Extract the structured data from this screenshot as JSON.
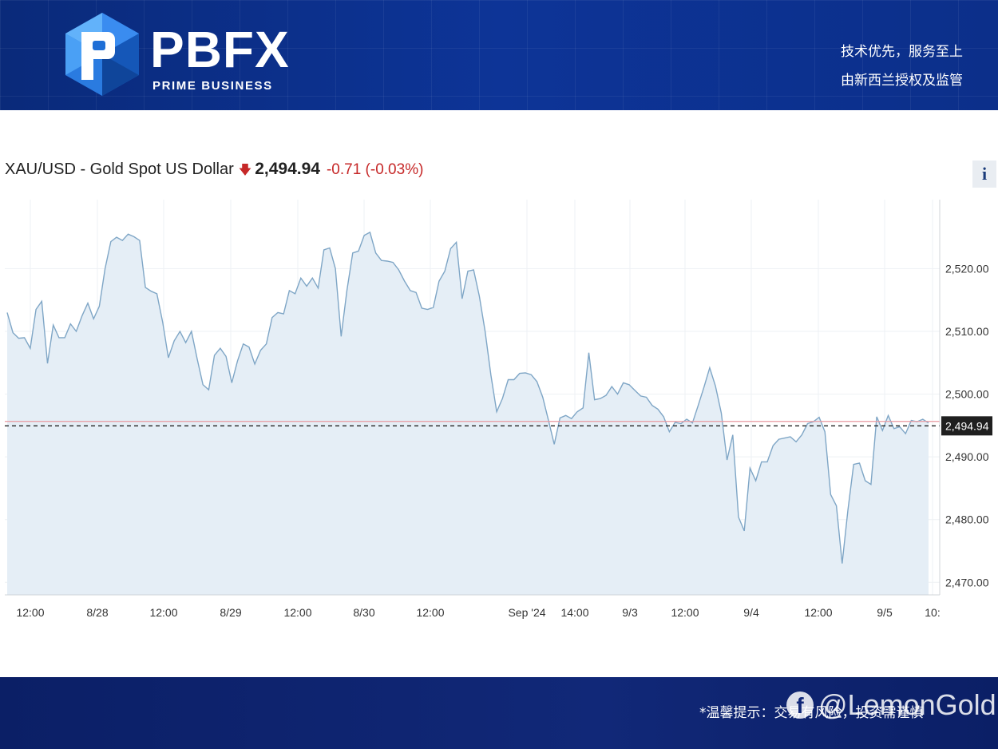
{
  "brand": {
    "name": "PBFX",
    "subtitle": "PRIME BUSINESS",
    "slogan_line1": "技术优先，服务至上",
    "slogan_line2": "由新西兰授权及监管"
  },
  "quote": {
    "symbol": "XAU/USD - Gold Spot US Dollar",
    "price": "2,494.94",
    "change": "-0.71 (-0.03%)",
    "direction_icon": "down-arrow-icon",
    "info_label": "i",
    "down_color": "#c62828"
  },
  "footer": {
    "note": "*温馨提示：交易有风险，投资需谨慎",
    "watermark_icon": "facebook-icon",
    "watermark_text": "@LemonGold"
  },
  "chart_data": {
    "type": "area",
    "title": "XAU/USD - Gold Spot US Dollar",
    "xlabel": "",
    "ylabel": "",
    "ylim": [
      2468,
      2531
    ],
    "grid": true,
    "line_color": "#7fa6c6",
    "fill_color": "#e5eef6",
    "y_ticks": [
      "2,470.00",
      "2,480.00",
      "2,490.00",
      "2,500.00",
      "2,510.00",
      "2,520.00"
    ],
    "x_ticks": [
      "12:00",
      "8/28",
      "12:00",
      "8/29",
      "12:00",
      "8/30",
      "12:00",
      "Sep '24",
      "14:00",
      "9/3",
      "12:00",
      "9/4",
      "12:00",
      "9/5",
      "10:"
    ],
    "last_price": 2494.94,
    "last_price_label": "2,494.94",
    "reference_line": 2495.65,
    "values": [
      2513,
      2509.8,
      2508.9,
      2509,
      2507.3,
      2513.5,
      2514.8,
      2504.9,
      2511,
      2509,
      2509,
      2511.2,
      2510,
      2512.5,
      2514.5,
      2512,
      2514,
      2520,
      2524.3,
      2525,
      2524.5,
      2525.5,
      2525.1,
      2524.5,
      2517,
      2516.4,
      2516,
      2511.5,
      2505.8,
      2508.5,
      2510,
      2508.2,
      2510,
      2505.6,
      2501.5,
      2500.7,
      2506.2,
      2507.3,
      2506,
      2501.8,
      2505.3,
      2508,
      2507.5,
      2504.8,
      2507,
      2508,
      2512.2,
      2513,
      2512.8,
      2516.5,
      2516,
      2518.5,
      2517.2,
      2518.5,
      2516.9,
      2523,
      2523.3,
      2520,
      2509.2,
      2516.5,
      2522.5,
      2522.8,
      2525.3,
      2525.8,
      2522.5,
      2521.3,
      2521.2,
      2521,
      2519.8,
      2518,
      2516.5,
      2516.2,
      2513.7,
      2513.5,
      2513.8,
      2518,
      2519.6,
      2523.2,
      2524.2,
      2515.2,
      2519.6,
      2519.8,
      2515.6,
      2510,
      2503,
      2497.2,
      2499.3,
      2502.3,
      2502.3,
      2503.3,
      2503.4,
      2503.1,
      2502,
      2499.5,
      2495.8,
      2492,
      2496.2,
      2496.6,
      2496.1,
      2497.2,
      2497.8,
      2506.6,
      2499.1,
      2499.3,
      2499.8,
      2501.2,
      2500,
      2501.8,
      2501.5,
      2500.6,
      2499.7,
      2499.5,
      2498.2,
      2497.6,
      2496.4,
      2494,
      2495.5,
      2495.3,
      2496,
      2495.4,
      2498.2,
      2501.1,
      2504.2,
      2501.3,
      2497,
      2489.5,
      2493.5,
      2480.4,
      2478.2,
      2488.2,
      2486.2,
      2489.2,
      2489.2,
      2491.8,
      2492.8,
      2493,
      2493.2,
      2492.4,
      2493.5,
      2495.3,
      2495.6,
      2496.3,
      2494,
      2484,
      2482.2,
      2473,
      2481.5,
      2488.8,
      2489,
      2486.2,
      2485.6,
      2496.4,
      2494.2,
      2496.6,
      2494.5,
      2494.8,
      2493.7,
      2495.8,
      2495.6,
      2496,
      2495.4
    ]
  }
}
